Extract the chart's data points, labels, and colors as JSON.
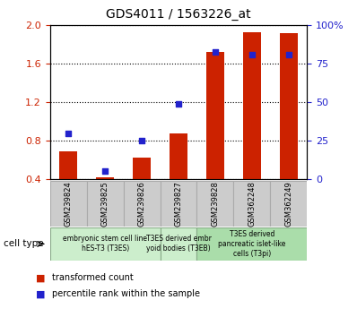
{
  "title": "GDS4011 / 1563226_at",
  "samples": [
    "GSM239824",
    "GSM239825",
    "GSM239826",
    "GSM239827",
    "GSM239828",
    "GSM362248",
    "GSM362249"
  ],
  "transformed_count": [
    0.69,
    0.42,
    0.62,
    0.88,
    1.72,
    1.93,
    1.92
  ],
  "percentile_rank": [
    0.88,
    0.48,
    0.8,
    1.18,
    1.72,
    1.7,
    1.7
  ],
  "ylim_left": [
    0.4,
    2.0
  ],
  "ylim_right": [
    0,
    100
  ],
  "yticks_left": [
    0.4,
    0.8,
    1.2,
    1.6,
    2.0
  ],
  "yticks_right": [
    0,
    25,
    50,
    75,
    100
  ],
  "bar_color": "#CC2200",
  "dot_color": "#2222CC",
  "bar_width": 0.5,
  "legend_items": [
    {
      "label": "transformed count",
      "color": "#CC2200"
    },
    {
      "label": "percentile rank within the sample",
      "color": "#2222CC"
    }
  ],
  "cell_type_label": "cell type",
  "group1_label": "embryonic stem cell line\nhES-T3 (T3ES)",
  "group2_label": "T3ES derived embr\nyoid bodies (T3EB)",
  "group3_label": "T3ES derived\npancreatic islet-like\ncells (T3pi)",
  "group_color_light": "#cceecc",
  "group_color_dark": "#aaddaa",
  "sample_box_color": "#cccccc",
  "sample_box_edge": "#aaaaaa"
}
